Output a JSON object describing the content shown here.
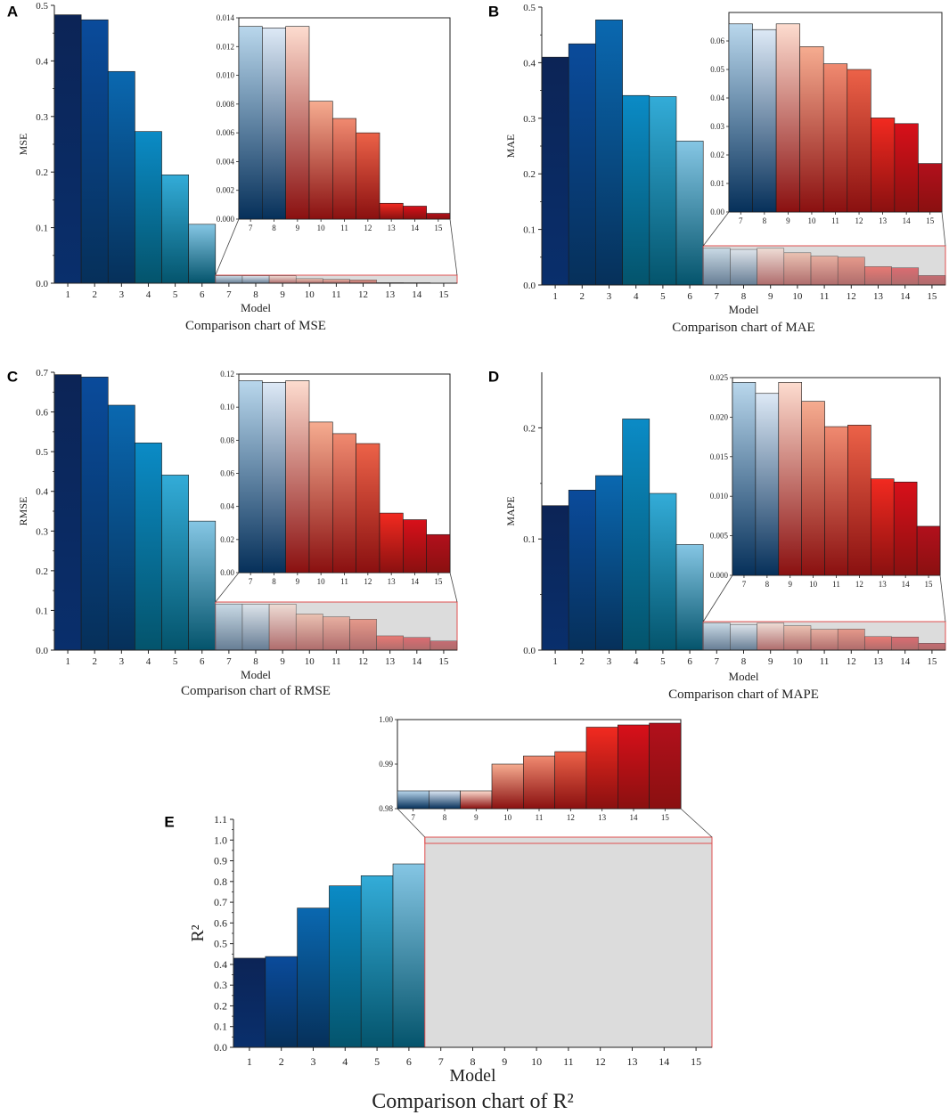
{
  "figure": {
    "panels": [
      "A",
      "B",
      "C",
      "D",
      "E"
    ]
  },
  "chart_data": [
    {
      "id": "A",
      "type": "bar",
      "title": "Comparison chart of MSE",
      "xlabel": "Model",
      "ylabel": "MSE",
      "categories": [
        "1",
        "2",
        "3",
        "4",
        "5",
        "6",
        "7",
        "8",
        "9",
        "10",
        "11",
        "12",
        "13",
        "14",
        "15"
      ],
      "values": [
        0.483,
        0.474,
        0.381,
        0.273,
        0.195,
        0.106,
        0.0134,
        0.0133,
        0.0134,
        0.0082,
        0.007,
        0.006,
        0.0011,
        0.0009,
        0.0004
      ],
      "ylim": [
        0,
        0.5
      ],
      "yticks": [
        "0.0",
        "0.1",
        "0.2",
        "0.3",
        "0.4",
        "0.5"
      ],
      "inset": {
        "from_model": 7,
        "ylim": [
          0,
          0.014
        ],
        "yticks": [
          "0.000",
          "0.002",
          "0.004",
          "0.006",
          "0.008",
          "0.010",
          "0.012",
          "0.014"
        ]
      }
    },
    {
      "id": "B",
      "type": "bar",
      "title": "Comparison chart of MAE",
      "xlabel": "Model",
      "ylabel": "MAE",
      "categories": [
        "1",
        "2",
        "3",
        "4",
        "5",
        "6",
        "7",
        "8",
        "9",
        "10",
        "11",
        "12",
        "13",
        "14",
        "15"
      ],
      "values": [
        0.41,
        0.434,
        0.477,
        0.341,
        0.339,
        0.259,
        0.066,
        0.064,
        0.066,
        0.058,
        0.052,
        0.05,
        0.033,
        0.031,
        0.017
      ],
      "ylim": [
        0,
        0.5
      ],
      "yticks": [
        "0.0",
        "0.1",
        "0.2",
        "0.3",
        "0.4",
        "0.5"
      ],
      "inset": {
        "from_model": 7,
        "ylim": [
          0,
          0.07
        ],
        "yticks": [
          "0.00",
          "0.01",
          "0.02",
          "0.03",
          "0.04",
          "0.05",
          "0.06"
        ]
      }
    },
    {
      "id": "C",
      "type": "bar",
      "title": "Comparison chart of RMSE",
      "xlabel": "Model",
      "ylabel": "RMSE",
      "categories": [
        "1",
        "2",
        "3",
        "4",
        "5",
        "6",
        "7",
        "8",
        "9",
        "10",
        "11",
        "12",
        "13",
        "14",
        "15"
      ],
      "values": [
        0.694,
        0.688,
        0.617,
        0.522,
        0.441,
        0.325,
        0.116,
        0.115,
        0.116,
        0.091,
        0.084,
        0.078,
        0.036,
        0.032,
        0.023
      ],
      "ylim": [
        0,
        0.7
      ],
      "yticks": [
        "0.0",
        "0.1",
        "0.2",
        "0.3",
        "0.4",
        "0.5",
        "0.6",
        "0.7"
      ],
      "inset": {
        "from_model": 7,
        "ylim": [
          0,
          0.12
        ],
        "yticks": [
          "0.00",
          "0.02",
          "0.04",
          "0.06",
          "0.08",
          "0.10",
          "0.12"
        ]
      }
    },
    {
      "id": "D",
      "type": "bar",
      "title": "Comparison chart of MAPE",
      "xlabel": "Model",
      "ylabel": "MAPE",
      "categories": [
        "1",
        "2",
        "3",
        "4",
        "5",
        "6",
        "7",
        "8",
        "9",
        "10",
        "11",
        "12",
        "13",
        "14",
        "15"
      ],
      "values": [
        0.13,
        0.144,
        0.157,
        0.208,
        0.141,
        0.095,
        0.0244,
        0.023,
        0.0244,
        0.022,
        0.0188,
        0.019,
        0.0122,
        0.0118,
        0.0062
      ],
      "ylim": [
        0,
        0.25
      ],
      "yticks": [
        "0.0",
        "0.1",
        "0.2"
      ],
      "inset": {
        "from_model": 7,
        "ylim": [
          0,
          0.025
        ],
        "yticks": [
          "0.000",
          "0.005",
          "0.010",
          "0.015",
          "0.020",
          "0.025"
        ]
      }
    },
    {
      "id": "E",
      "type": "bar",
      "title": "Comparison chart of R²",
      "xlabel": "Model",
      "ylabel": "R²",
      "categories": [
        "1",
        "2",
        "3",
        "4",
        "5",
        "6",
        "7",
        "8",
        "9",
        "10",
        "11",
        "12",
        "13",
        "14",
        "15"
      ],
      "values": [
        0.43,
        0.438,
        0.672,
        0.779,
        0.828,
        0.885,
        0.984,
        0.984,
        0.984,
        0.99,
        0.9918,
        0.9928,
        0.9983,
        0.9988,
        0.9992
      ],
      "ylim": [
        0,
        1.1
      ],
      "yticks": [
        "0.0",
        "0.1",
        "0.2",
        "0.3",
        "0.4",
        "0.5",
        "0.6",
        "0.7",
        "0.8",
        "0.9",
        "1.0",
        "1.1"
      ],
      "inset": {
        "from_model": 7,
        "ylim": [
          0.98,
          1.0
        ],
        "yticks": [
          "0.98",
          "0.99",
          "1.00"
        ]
      }
    }
  ],
  "colors": {
    "blue_dark": "#0c2456",
    "blue_1": "#092f6c",
    "blue_2": "#0a4b9b",
    "blue_3": "#0a68b0",
    "blue_4": "#0b8bc6",
    "blue_5": "#33acd8",
    "blue_6": "#85c6e4",
    "light_blue": "#b9d7ec",
    "pale_blue": "#dde9f6",
    "peach": "#fddccf",
    "salmon": "#f6ac90",
    "coral": "#f08a70",
    "orange_red": "#ec6248",
    "red": "#f22a20",
    "deep_red": "#d8101a",
    "dark_red": "#b2101c",
    "teal_bottom": "#04546c",
    "navy_bottom": "#06305a",
    "maroon_bottom": "#8a1010",
    "zoom_box_fill": "#dcdcdc",
    "zoom_box_stroke": "#e05050"
  }
}
